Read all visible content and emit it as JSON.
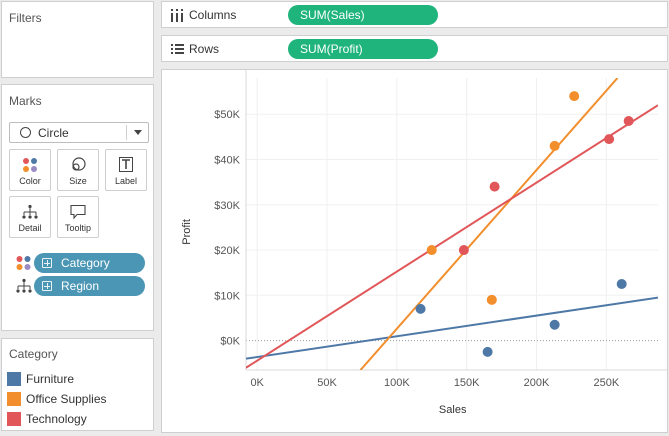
{
  "filters": {
    "title": "Filters"
  },
  "marks": {
    "title": "Marks",
    "mark_type": "Circle",
    "buttons": {
      "color": "Color",
      "size": "Size",
      "label": "Label",
      "detail": "Detail",
      "tooltip": "Tooltip"
    },
    "pills": {
      "color": "Category",
      "detail": "Region"
    }
  },
  "legend": {
    "title": "Category",
    "items": [
      {
        "label": "Furniture",
        "color": "#4e79a7"
      },
      {
        "label": "Office Supplies",
        "color": "#f28e2b"
      },
      {
        "label": "Technology",
        "color": "#e15759"
      }
    ]
  },
  "shelves": {
    "columns": {
      "label": "Columns",
      "pill": "SUM(Sales)"
    },
    "rows": {
      "label": "Rows",
      "pill": "SUM(Profit)"
    }
  },
  "colors": {
    "shelf_pill": "#1fb47c",
    "dim_pill": "#4b96b4"
  },
  "chart_data": {
    "type": "scatter",
    "xlabel": "Sales",
    "ylabel": "Profit",
    "xlim": [
      -8000,
      287000
    ],
    "ylim": [
      -6500,
      58000
    ],
    "x_ticks": [
      0,
      50000,
      100000,
      150000,
      200000,
      250000
    ],
    "x_tick_labels": [
      "0K",
      "50K",
      "100K",
      "150K",
      "200K",
      "250K"
    ],
    "y_ticks": [
      0,
      10000,
      20000,
      30000,
      40000,
      50000
    ],
    "y_tick_labels": [
      "$0K",
      "$10K",
      "$20K",
      "$30K",
      "$40K",
      "$50K"
    ],
    "zero_line": "dotted",
    "series": [
      {
        "name": "Furniture",
        "color": "#4e79a7",
        "points": [
          [
            117000,
            7000
          ],
          [
            165000,
            -2500
          ],
          [
            213000,
            3500
          ],
          [
            261000,
            12500
          ]
        ],
        "trend_line": {
          "from": [
            -8000,
            -4000
          ],
          "to": [
            287000,
            9500
          ]
        }
      },
      {
        "name": "Office Supplies",
        "color": "#f28e2b",
        "points": [
          [
            125000,
            20000
          ],
          [
            168000,
            9000
          ],
          [
            213000,
            43000
          ],
          [
            227000,
            54000
          ]
        ],
        "trend_line": {
          "from": [
            74000,
            -6500
          ],
          "to": [
            258000,
            58000
          ]
        }
      },
      {
        "name": "Technology",
        "color": "#e15759",
        "points": [
          [
            148000,
            20000
          ],
          [
            170000,
            34000
          ],
          [
            252000,
            44500
          ],
          [
            266000,
            48500
          ]
        ],
        "trend_line": {
          "from": [
            -8000,
            -6000
          ],
          "to": [
            287000,
            52000
          ]
        }
      }
    ]
  }
}
